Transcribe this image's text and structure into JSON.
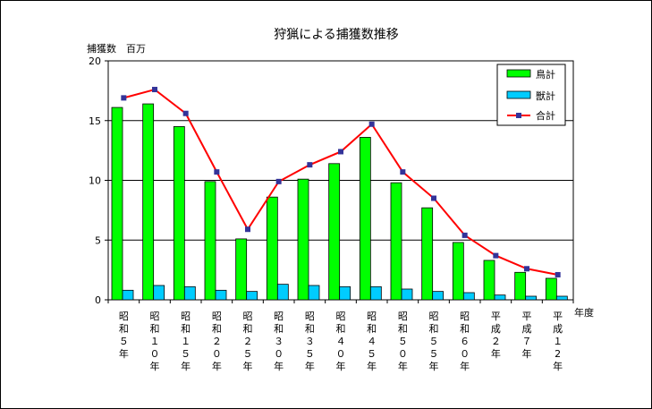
{
  "chart_data": {
    "type": "bar",
    "title": "狩猟による捕獲数推移",
    "ylabel": "捕獲数　百万",
    "xlabel": "年度",
    "ylim": [
      0,
      20
    ],
    "yticks": [
      0,
      5,
      10,
      15,
      20
    ],
    "grid": true,
    "legend_position": "top-right",
    "categories": [
      "昭和5年",
      "昭和10年",
      "昭和15年",
      "昭和20年",
      "昭和25年",
      "昭和30年",
      "昭和35年",
      "昭和40年",
      "昭和45年",
      "昭和50年",
      "昭和55年",
      "昭和60年",
      "平成2年",
      "平成7年",
      "平成12年"
    ],
    "category_labels": [
      [
        "昭",
        "和",
        "５",
        "年"
      ],
      [
        "昭",
        "和",
        "１",
        "０",
        "年"
      ],
      [
        "昭",
        "和",
        "１",
        "５",
        "年"
      ],
      [
        "昭",
        "和",
        "２",
        "０",
        "年"
      ],
      [
        "昭",
        "和",
        "２",
        "５",
        "年"
      ],
      [
        "昭",
        "和",
        "３",
        "０",
        "年"
      ],
      [
        "昭",
        "和",
        "３",
        "５",
        "年"
      ],
      [
        "昭",
        "和",
        "４",
        "０",
        "年"
      ],
      [
        "昭",
        "和",
        "４",
        "５",
        "年"
      ],
      [
        "昭",
        "和",
        "５",
        "０",
        "年"
      ],
      [
        "昭",
        "和",
        "５",
        "５",
        "年"
      ],
      [
        "昭",
        "和",
        "６",
        "０",
        "年"
      ],
      [
        "平",
        "成",
        "２",
        "年"
      ],
      [
        "平",
        "成",
        "７",
        "年"
      ],
      [
        "平",
        "成",
        "１",
        "2",
        "年"
      ]
    ],
    "series": [
      {
        "name": "鳥計",
        "kind": "bar",
        "color": "#00ff00",
        "values": [
          16.1,
          16.4,
          14.5,
          9.9,
          5.1,
          8.6,
          10.1,
          11.4,
          13.6,
          9.8,
          7.7,
          4.8,
          3.3,
          2.3,
          1.8
        ]
      },
      {
        "name": "獣計",
        "kind": "bar",
        "color": "#00ccff",
        "values": [
          0.8,
          1.2,
          1.1,
          0.8,
          0.7,
          1.3,
          1.2,
          1.1,
          1.1,
          0.9,
          0.7,
          0.6,
          0.4,
          0.3,
          0.3
        ]
      },
      {
        "name": "合計",
        "kind": "line",
        "color": "#ff0000",
        "marker_color": "#333399",
        "values": [
          16.9,
          17.6,
          15.6,
          10.7,
          5.9,
          9.9,
          11.3,
          12.4,
          14.7,
          10.7,
          8.5,
          5.4,
          3.7,
          2.6,
          2.1
        ]
      }
    ]
  }
}
